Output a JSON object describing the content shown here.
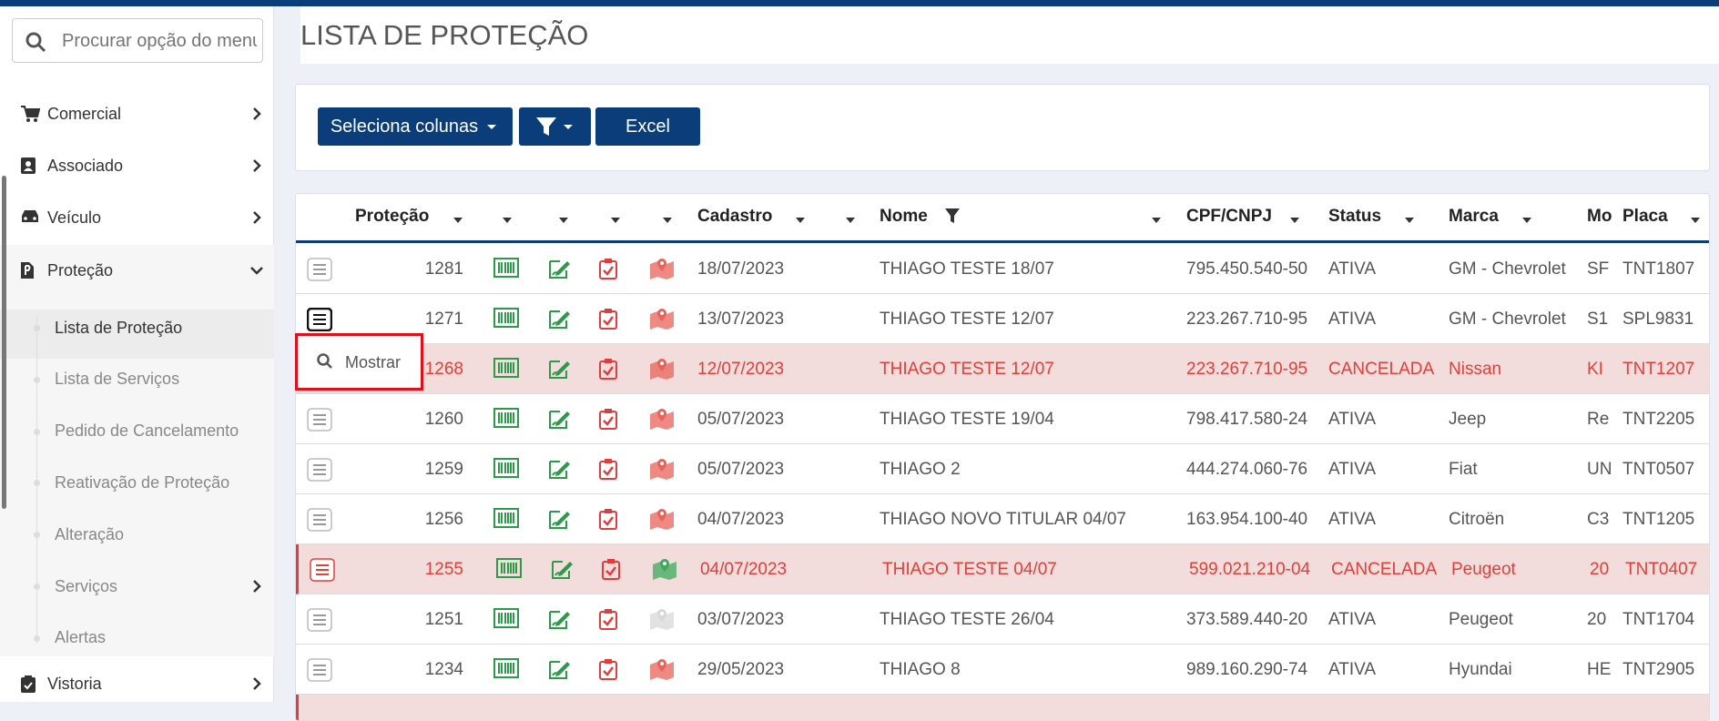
{
  "sidebar": {
    "search_placeholder": "Procurar opção do menu",
    "menu": [
      {
        "label": "Comercial"
      },
      {
        "label": "Associado"
      },
      {
        "label": "Veículo"
      },
      {
        "label": "Proteção"
      },
      {
        "label": "Vistoria"
      }
    ],
    "submenu": [
      "Lista de Proteção",
      "Lista de Serviços",
      "Pedido de Cancelamento",
      "Reativação de Proteção",
      "Alteração",
      "Serviços",
      "Alertas"
    ]
  },
  "header": {
    "title": "LISTA DE PROTEÇÃO"
  },
  "toolbar": {
    "buttons": [
      "Seleciona colunas",
      "Excel"
    ]
  },
  "table": {
    "columns": [
      "Proteção",
      "Cadastro",
      "Nome",
      "CPF/CNPJ",
      "Status",
      "Marca",
      "Mo",
      "Placa"
    ],
    "rows": [
      {
        "cells": [
          "1281",
          "18/07/2023",
          "THIAGO TESTE 18/07",
          "795.450.540-50",
          "ATIVA",
          "GM - Chevrolet",
          "SF",
          "TNT1807"
        ],
        "color": "#555555",
        "background": "#ffffff",
        "map_color": "#e8635a"
      },
      {
        "cells": [
          "1271",
          "13/07/2023",
          "THIAGO TESTE 12/07",
          "223.267.710-95",
          "ATIVA",
          "GM - Chevrolet",
          "S1",
          "SPL9831"
        ],
        "color": "#555555",
        "background": "#ffffff",
        "map_color": "#e8635a"
      },
      {
        "cells": [
          "1268",
          "12/07/2023",
          "THIAGO TESTE 12/07",
          "223.267.710-95",
          "CANCELADA",
          "Nissan",
          "KI",
          "TNT1207"
        ],
        "color": "#e0403a",
        "background": "#f2dcdc",
        "map_color": "#e8635a"
      },
      {
        "cells": [
          "1260",
          "05/07/2023",
          "THIAGO TESTE 19/04",
          "798.417.580-24",
          "ATIVA",
          "Jeep",
          "Re",
          "TNT2205"
        ],
        "color": "#555555",
        "background": "#ffffff",
        "map_color": "#e8635a"
      },
      {
        "cells": [
          "1259",
          "05/07/2023",
          "THIAGO 2",
          "444.274.060-76",
          "ATIVA",
          "Fiat",
          "UN",
          "TNT0507"
        ],
        "color": "#555555",
        "background": "#ffffff",
        "map_color": "#e8635a"
      },
      {
        "cells": [
          "1256",
          "04/07/2023",
          "THIAGO NOVO TITULAR 04/07",
          "163.954.100-40",
          "ATIVA",
          "Citroën",
          "C3",
          "TNT1205"
        ],
        "color": "#555555",
        "background": "#ffffff",
        "map_color": "#e8635a"
      },
      {
        "cells": [
          "1255",
          "04/07/2023",
          "THIAGO TESTE 04/07",
          "599.021.210-04",
          "CANCELADA",
          "Peugeot",
          "20",
          "TNT0407"
        ],
        "color": "#e0403a",
        "background": "#f2dcdc",
        "map_color": "#3daa5c"
      },
      {
        "cells": [
          "1251",
          "03/07/2023",
          "THIAGO TESTE 26/04",
          "373.589.440-20",
          "ATIVA",
          "Peugeot",
          "20",
          "TNT1704"
        ],
        "color": "#555555",
        "background": "#ffffff",
        "map_color": "#d8d8d8"
      },
      {
        "cells": [
          "1234",
          "29/05/2023",
          "THIAGO 8",
          "989.160.290-74",
          "ATIVA",
          "Hyundai",
          "HE",
          "TNT2905"
        ],
        "color": "#555555",
        "background": "#ffffff",
        "map_color": "#e8635a"
      }
    ]
  },
  "popup": {
    "label": "Mostrar"
  }
}
